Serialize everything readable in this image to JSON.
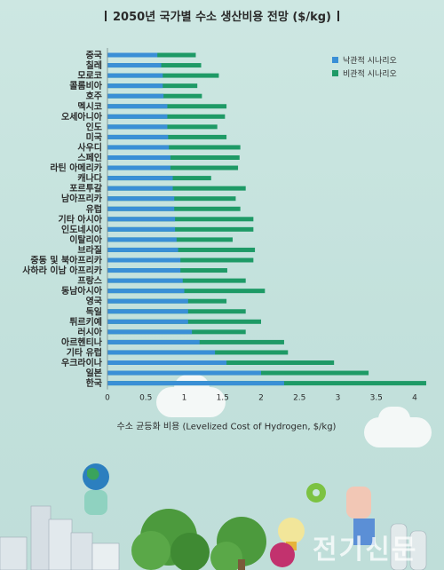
{
  "chart_data": {
    "type": "bar",
    "orientation": "horizontal",
    "stacked": false,
    "title": "2050년 국가별 수소 생산비용 전망 ($/kg)",
    "xlabel": "수소 균등화 비용 (Levelized Cost of Hydrogen, $/kg)",
    "ylabel": "",
    "xlim": [
      0,
      4
    ],
    "xticks": [
      "0",
      "0.5",
      "1",
      "1.5",
      "2",
      "2.5",
      "3",
      "3.5",
      "4"
    ],
    "legend_position": "top-right",
    "categories": [
      "중국",
      "칠레",
      "모로코",
      "콜롬비아",
      "호주",
      "멕시코",
      "오세아니아",
      "인도",
      "미국",
      "사우디",
      "스페인",
      "라틴 아메리카",
      "캐나다",
      "포르투갈",
      "남아프리카",
      "유럽",
      "기타 아시아",
      "인도네시아",
      "이탈리아",
      "브라질",
      "중동 및 북아프리카",
      "사하라 이남 아프리카",
      "프랑스",
      "동남아시아",
      "영국",
      "독일",
      "튀르키예",
      "러시아",
      "아르헨티나",
      "기타 유럽",
      "우크라이나",
      "일본",
      "한국"
    ],
    "series": [
      {
        "name": "낙관적 시나리오",
        "color": "#3a8fd6",
        "values": [
          0.65,
          0.7,
          0.72,
          0.72,
          0.73,
          0.78,
          0.78,
          0.78,
          0.79,
          0.8,
          0.82,
          0.82,
          0.85,
          0.85,
          0.87,
          0.87,
          0.88,
          0.88,
          0.9,
          0.92,
          0.95,
          0.95,
          0.98,
          1.0,
          1.05,
          1.05,
          1.05,
          1.1,
          1.2,
          1.4,
          1.55,
          2.0,
          2.3
        ]
      },
      {
        "name": "비관적 시나리오",
        "color": "#1e9a66",
        "values": [
          1.15,
          1.22,
          1.45,
          1.17,
          1.23,
          1.55,
          1.53,
          1.43,
          1.55,
          1.73,
          1.72,
          1.7,
          1.35,
          1.8,
          1.67,
          1.73,
          1.9,
          1.9,
          1.63,
          1.92,
          1.9,
          1.56,
          1.8,
          2.05,
          1.55,
          1.8,
          2.0,
          1.8,
          2.3,
          2.35,
          2.95,
          3.4,
          4.15
        ]
      }
    ]
  },
  "decor": {
    "watermark": "전기신문"
  }
}
